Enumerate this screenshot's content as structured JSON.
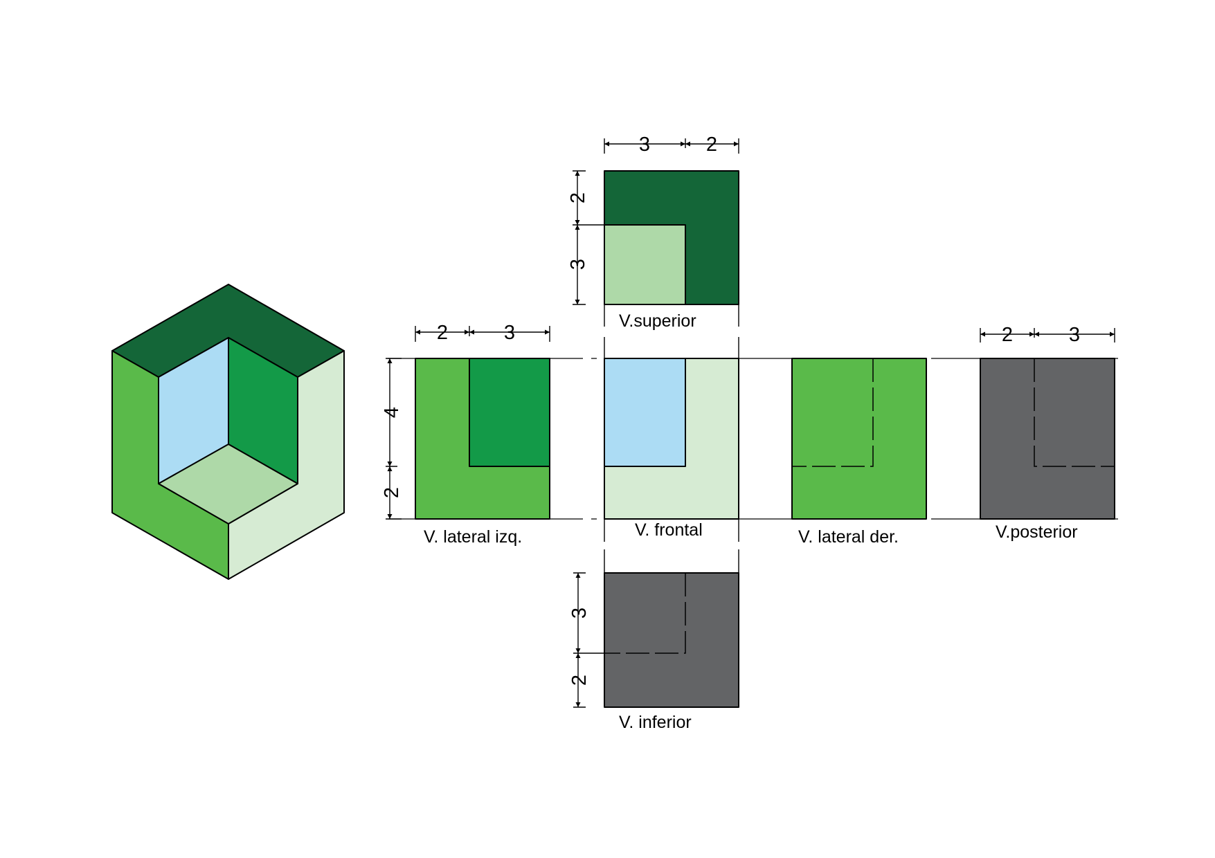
{
  "colors": {
    "dark_green": "#146638",
    "mid_green": "#139a48",
    "bright_green": "#5aba4a",
    "light_green": "#aed9a8",
    "pale_green": "#d6ebd3",
    "light_blue": "#acdcf4",
    "gray": "#636466",
    "line": "#000000"
  },
  "views": {
    "superior": {
      "label": "V.superior",
      "dims": {
        "top": [
          "3",
          "2"
        ],
        "left": [
          "2",
          "3"
        ]
      }
    },
    "lateral_izq": {
      "label": "V. lateral izq.",
      "dims": {
        "top": [
          "2",
          "3"
        ],
        "left": [
          "4",
          "2"
        ]
      }
    },
    "frontal": {
      "label": "V. frontal"
    },
    "lateral_der": {
      "label": "V. lateral der."
    },
    "posterior": {
      "label": "V.posterior",
      "dims": {
        "top": [
          "2",
          "3"
        ]
      }
    },
    "inferior": {
      "label": "V. inferior",
      "dims": {
        "left": [
          "3",
          "2"
        ]
      }
    }
  }
}
